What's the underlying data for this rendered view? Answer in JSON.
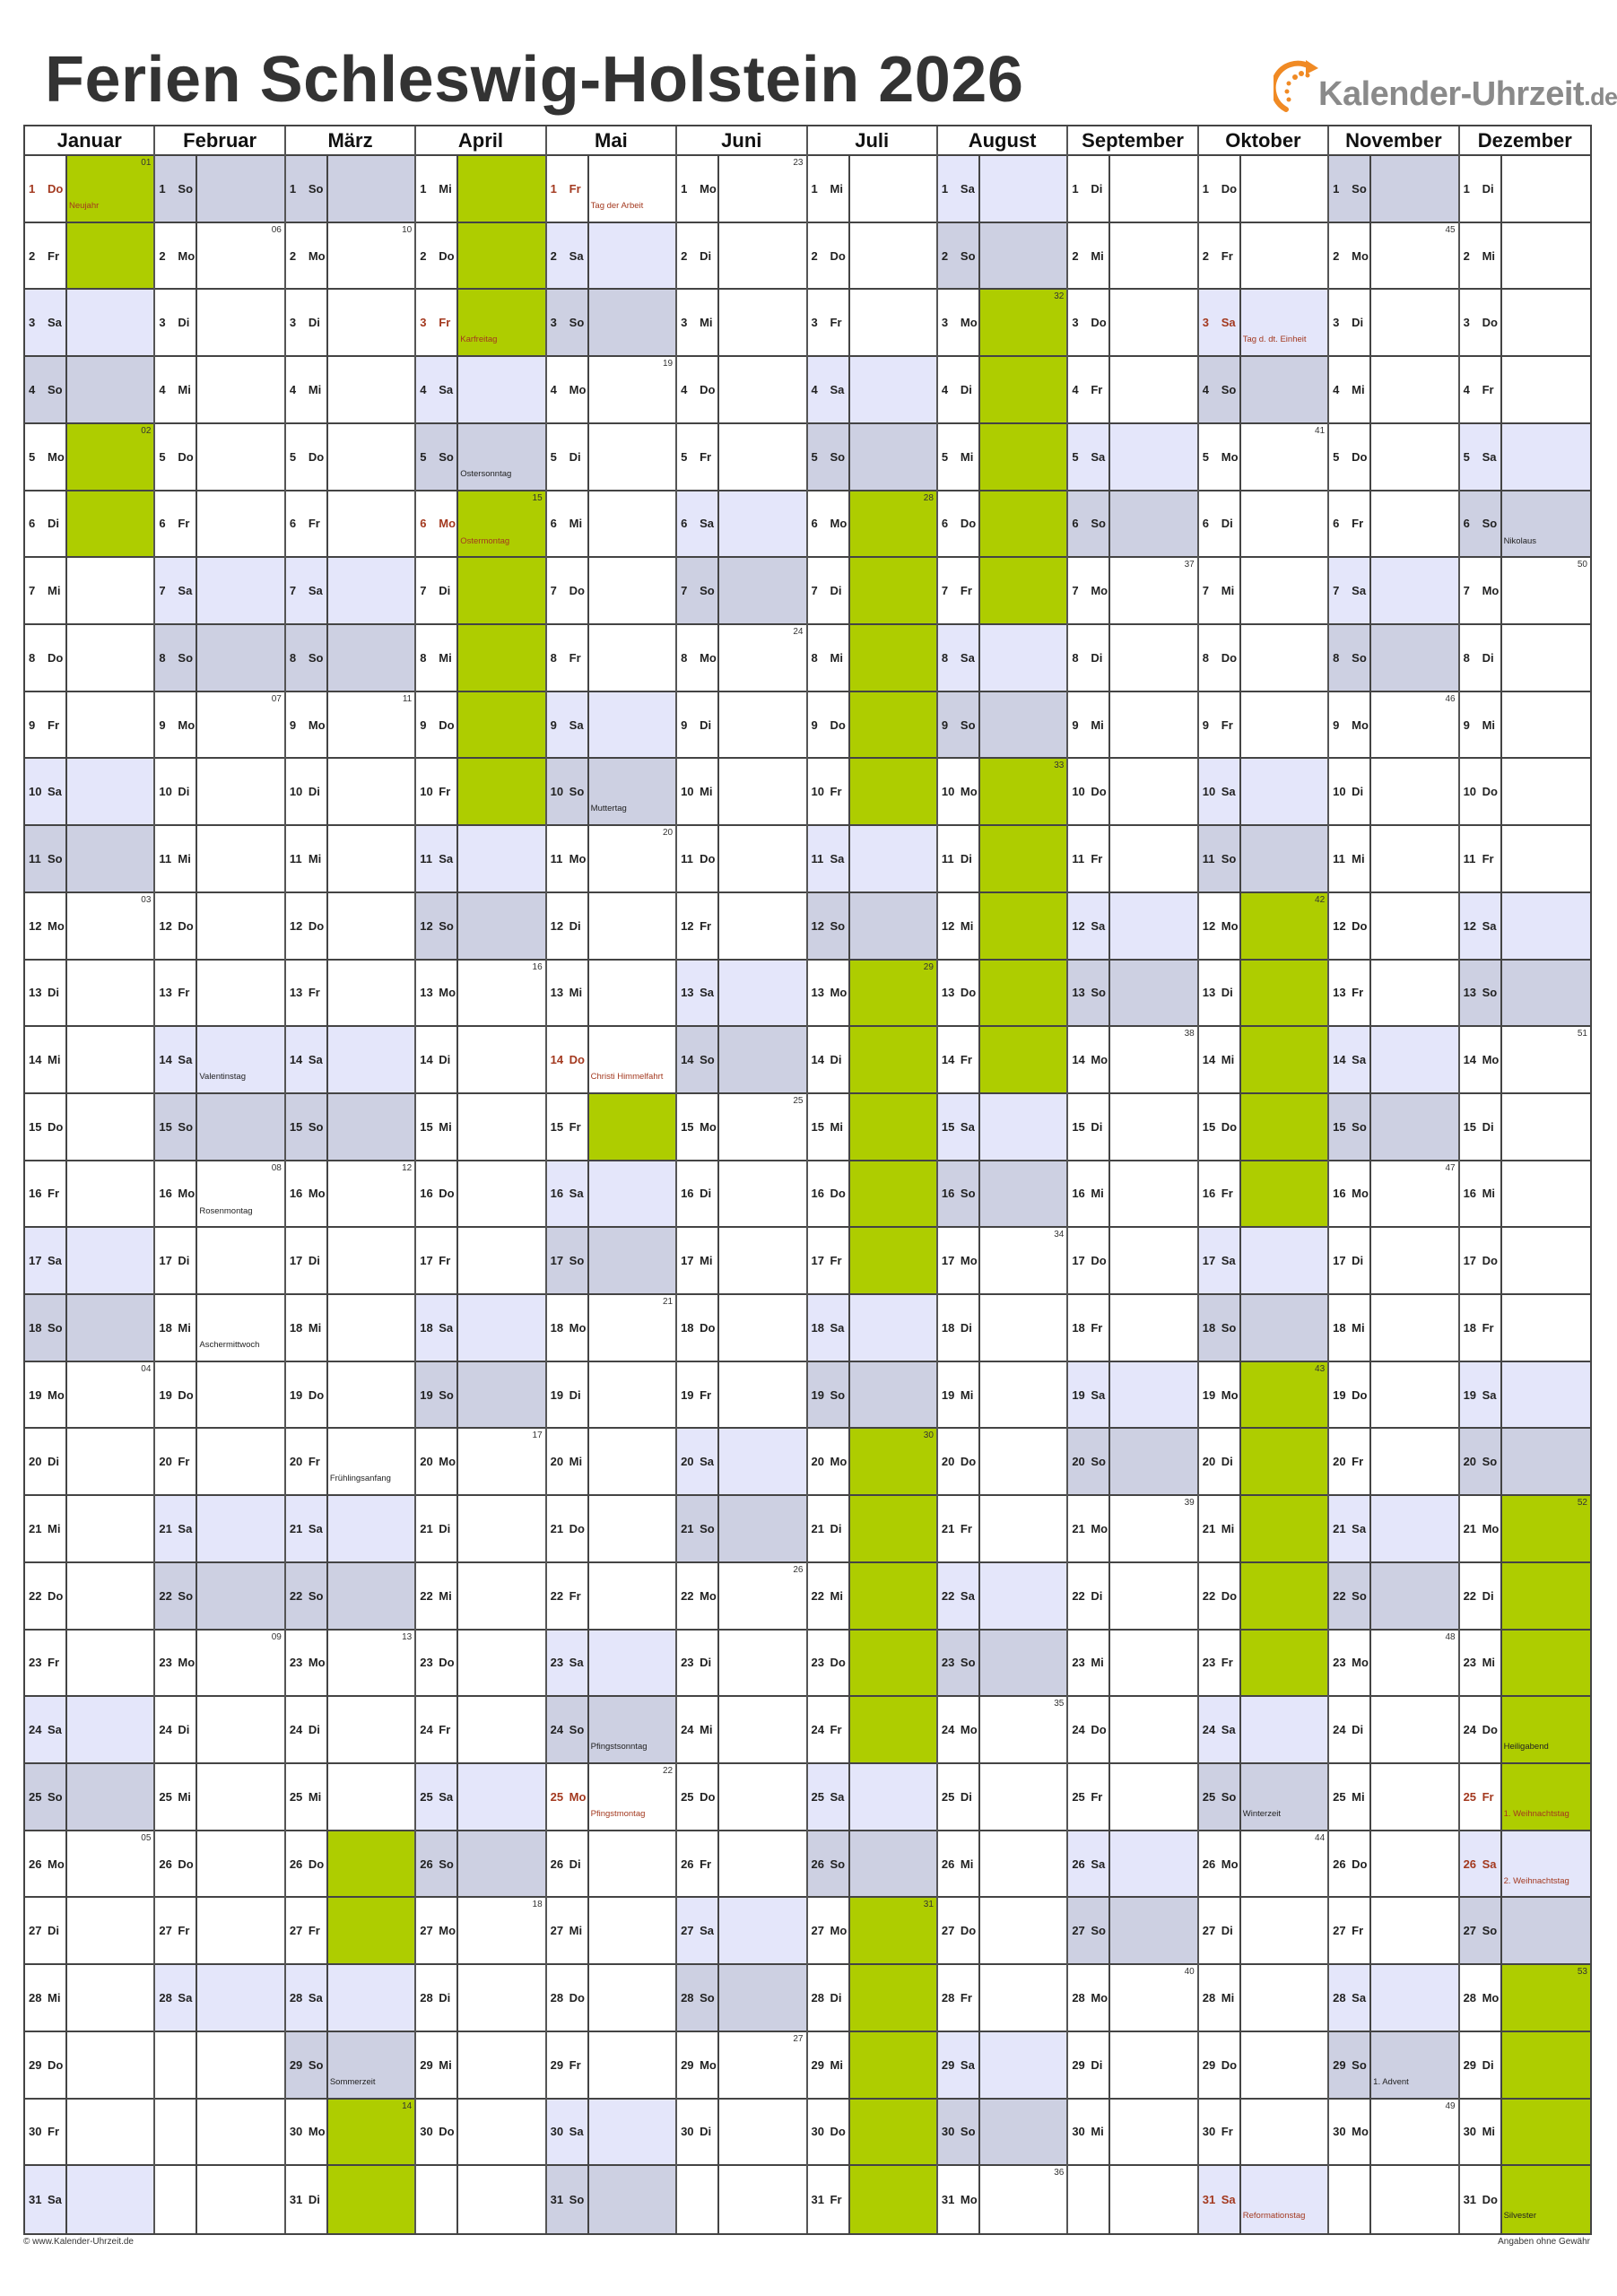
{
  "title": "Ferien Schleswig-Holstein 2026",
  "logo": {
    "text": "Kalender-Uhrzeit",
    "suffix": ".de"
  },
  "footer": {
    "left": "© www.Kalender-Uhrzeit.de",
    "right": "Angaben ohne Gewähr"
  },
  "colors": {
    "saturday": "#e4e6fa",
    "sunday": "#cdd0e2",
    "vacation": "#aecd00",
    "holiday_text": "#a3391f",
    "logo_orange": "#f08a24"
  },
  "weekday_names": [
    "Mo",
    "Di",
    "Mi",
    "Do",
    "Fr",
    "Sa",
    "So"
  ],
  "months": [
    {
      "name": "Januar",
      "start": 3,
      "length": 31,
      "kw": {
        "1": "01",
        "5": "02",
        "12": "03",
        "19": "04",
        "26": "05"
      },
      "vacation": [
        [
          1,
          6
        ]
      ],
      "holidays": {
        "1": {
          "label": "Neujahr",
          "public": true
        }
      }
    },
    {
      "name": "Februar",
      "start": 6,
      "length": 28,
      "kw": {
        "2": "06",
        "9": "07",
        "16": "08",
        "23": "09"
      },
      "vacation": [],
      "holidays": {
        "14": {
          "label": "Valentinstag",
          "public": false
        },
        "16": {
          "label": "Rosenmontag",
          "public": false
        },
        "18": {
          "label": "Aschermittwoch",
          "public": false
        }
      }
    },
    {
      "name": "März",
      "start": 6,
      "length": 31,
      "kw": {
        "2": "10",
        "9": "11",
        "16": "12",
        "23": "13",
        "30": "14"
      },
      "vacation": [
        [
          26,
          31
        ]
      ],
      "holidays": {
        "20": {
          "label": "Frühlingsanfang",
          "public": false
        },
        "29": {
          "label": "Sommerzeit",
          "public": false
        }
      }
    },
    {
      "name": "April",
      "start": 2,
      "length": 30,
      "kw": {
        "6": "15",
        "13": "16",
        "20": "17",
        "27": "18"
      },
      "vacation": [
        [
          1,
          10
        ]
      ],
      "holidays": {
        "3": {
          "label": "Karfreitag",
          "public": true
        },
        "5": {
          "label": "Ostersonntag",
          "public": false
        },
        "6": {
          "label": "Ostermontag",
          "public": true
        }
      }
    },
    {
      "name": "Mai",
      "start": 4,
      "length": 31,
      "kw": {
        "4": "19",
        "11": "20",
        "18": "21",
        "25": "22"
      },
      "vacation": [
        [
          15,
          15
        ]
      ],
      "holidays": {
        "1": {
          "label": "Tag der Arbeit",
          "public": true
        },
        "10": {
          "label": "Muttertag",
          "public": false
        },
        "14": {
          "label": "Christi Himmelfahrt",
          "public": true
        },
        "24": {
          "label": "Pfingstsonntag",
          "public": false
        },
        "25": {
          "label": "Pfingstmontag",
          "public": true
        }
      }
    },
    {
      "name": "Juni",
      "start": 0,
      "length": 30,
      "kw": {
        "1": "23",
        "8": "24",
        "15": "25",
        "22": "26",
        "29": "27"
      },
      "vacation": [],
      "holidays": {}
    },
    {
      "name": "Juli",
      "start": 2,
      "length": 31,
      "kw": {
        "6": "28",
        "13": "29",
        "20": "30",
        "27": "31"
      },
      "vacation": [
        [
          6,
          31
        ]
      ],
      "holidays": {}
    },
    {
      "name": "August",
      "start": 5,
      "length": 31,
      "kw": {
        "3": "32",
        "10": "33",
        "17": "34",
        "24": "35",
        "31": "36"
      },
      "vacation": [
        [
          1,
          14
        ]
      ],
      "holidays": {}
    },
    {
      "name": "September",
      "start": 1,
      "length": 30,
      "kw": {
        "7": "37",
        "14": "38",
        "21": "39",
        "28": "40"
      },
      "vacation": [],
      "holidays": {}
    },
    {
      "name": "Oktober",
      "start": 3,
      "length": 31,
      "kw": {
        "5": "41",
        "12": "42",
        "19": "43",
        "26": "44"
      },
      "vacation": [
        [
          12,
          23
        ]
      ],
      "holidays": {
        "3": {
          "label": "Tag d. dt. Einheit",
          "public": true
        },
        "25": {
          "label": "Winterzeit",
          "public": false
        },
        "31": {
          "label": "Reformationstag",
          "public": true
        }
      }
    },
    {
      "name": "November",
      "start": 6,
      "length": 30,
      "kw": {
        "2": "45",
        "9": "46",
        "16": "47",
        "23": "48",
        "30": "49"
      },
      "vacation": [],
      "holidays": {
        "29": {
          "label": "1. Advent",
          "public": false
        }
      }
    },
    {
      "name": "Dezember",
      "start": 1,
      "length": 31,
      "kw": {
        "7": "50",
        "14": "51",
        "21": "52",
        "28": "53"
      },
      "vacation": [
        [
          21,
          31
        ]
      ],
      "holidays": {
        "6": {
          "label": "Nikolaus",
          "public": false
        },
        "24": {
          "label": "Heiligabend",
          "public": false
        },
        "25": {
          "label": "1. Weihnachtstag",
          "public": true
        },
        "26": {
          "label": "2. Weihnachtstag",
          "public": true
        },
        "31": {
          "label": "Silvester",
          "public": false
        }
      }
    }
  ]
}
